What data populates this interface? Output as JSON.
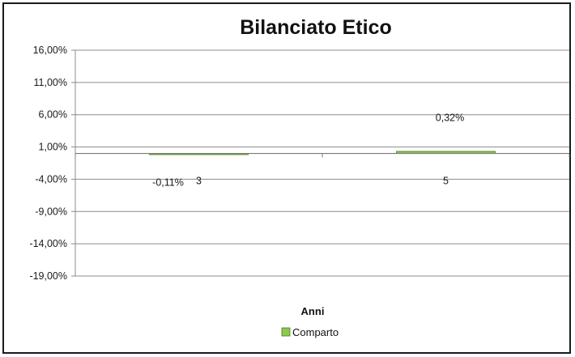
{
  "chart_data": {
    "type": "bar",
    "title": "Bilanciato  Etico",
    "xlabel": "Anni",
    "ylabel": "",
    "categories": [
      "3",
      "5"
    ],
    "series": [
      {
        "name": "Comparto",
        "values": [
          -0.11,
          0.32
        ],
        "labels": [
          "-0,11%",
          "0,32%"
        ],
        "color": "#8cc850"
      }
    ],
    "yticks": [
      16,
      11,
      6,
      1,
      -4,
      -9,
      -14,
      -19
    ],
    "ytick_labels": [
      "16,00%",
      "11,00%",
      "6,00%",
      "1,00%",
      "-4,00%",
      "-9,00%",
      "-14,00%",
      "-19,00%"
    ],
    "ylim": [
      -19,
      16
    ],
    "grid": true,
    "legend_position": "bottom"
  }
}
